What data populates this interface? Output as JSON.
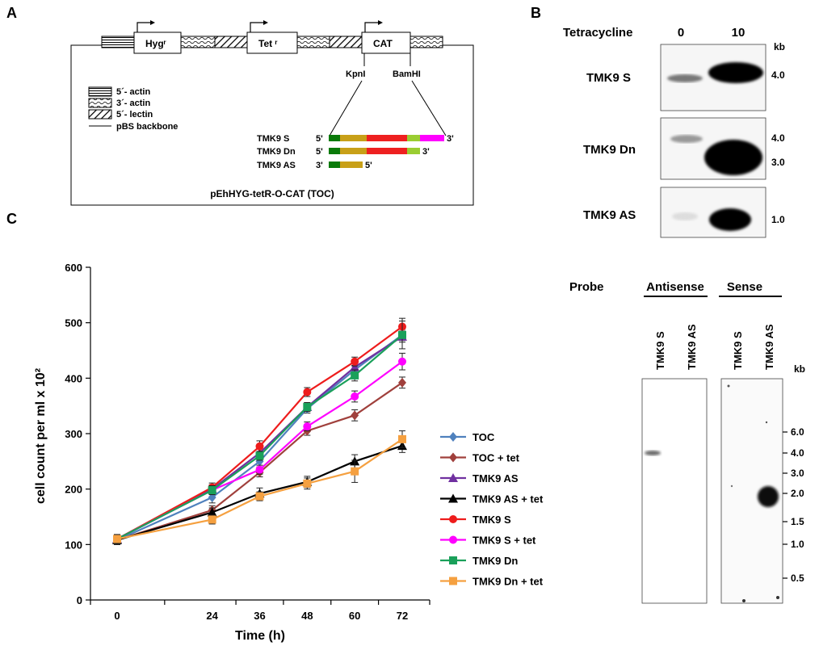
{
  "panel_labels": {
    "a": "A",
    "b": "B",
    "c": "C"
  },
  "panel_a": {
    "genes": [
      "Hygʳ",
      "Tet ʳ",
      "CAT"
    ],
    "sites": [
      "KpnI",
      "BamHI"
    ],
    "legend": [
      "5´- actin",
      "3´- actin",
      "5´- lectin",
      "pBS backbone"
    ],
    "constructs": [
      {
        "name": "TMK9 S",
        "left": "5'",
        "right": "3'"
      },
      {
        "name": "TMK9 Dn",
        "left": "5'",
        "right": "3'"
      },
      {
        "name": "TMK9 AS",
        "left": "3'",
        "right": "5'"
      }
    ],
    "plasmid_name": "pEhHYG-tetR-O-CAT (TOC)",
    "colors": {
      "dark_green": "#0a7a0a",
      "mustard": "#c8a018",
      "red": "#ee2020",
      "lime": "#9acd32",
      "magenta": "#ff00ff"
    }
  },
  "panel_b": {
    "treatment_label": "Tetracycline",
    "doses": [
      "0",
      "10"
    ],
    "unit": "kb",
    "blots": [
      {
        "name": "TMK9 S",
        "sizes": [
          "4.0"
        ]
      },
      {
        "name": "TMK9 Dn",
        "sizes": [
          "4.0",
          "3.0"
        ]
      },
      {
        "name": "TMK9 AS",
        "sizes": [
          "1.0"
        ]
      }
    ]
  },
  "panel_d": {
    "probe_label": "Probe",
    "groups": [
      "Antisense",
      "Sense"
    ],
    "lanes": [
      "TMK9 S",
      "TMK9 AS",
      "TMK9 S",
      "TMK9 AS"
    ],
    "unit": "kb",
    "markers": [
      "6.0",
      "4.0",
      "3.0",
      "2.0",
      "1.5",
      "1.0",
      "0.5"
    ]
  },
  "chart_data": {
    "type": "line",
    "xlabel": "Time (h)",
    "ylabel": "cell count per ml x 10²",
    "x": [
      0,
      24,
      36,
      48,
      60,
      72
    ],
    "xlim": [
      0,
      72
    ],
    "ylim": [
      0,
      600
    ],
    "yticks": [
      0,
      100,
      200,
      300,
      400,
      500,
      600
    ],
    "grid": false,
    "legend_position": "right",
    "series": [
      {
        "name": "TOC",
        "color": "#4f81bd",
        "marker": "diamond",
        "values": [
          108,
          185,
          250,
          345,
          415,
          478
        ],
        "err": [
          8,
          10,
          10,
          8,
          8,
          10
        ]
      },
      {
        "name": "TOC + tet",
        "color": "#a0403c",
        "marker": "diamond",
        "values": [
          108,
          162,
          230,
          305,
          333,
          392
        ],
        "err": [
          8,
          8,
          8,
          8,
          10,
          10
        ]
      },
      {
        "name": "TMK9 AS",
        "color": "#7030a0",
        "marker": "triangle",
        "values": [
          110,
          200,
          265,
          348,
          420,
          475
        ],
        "err": [
          8,
          8,
          8,
          8,
          10,
          10
        ]
      },
      {
        "name": "TMK9 AS + tet",
        "color": "#000000",
        "marker": "triangle",
        "values": [
          108,
          158,
          192,
          213,
          250,
          278
        ],
        "err": [
          8,
          8,
          10,
          10,
          12,
          12
        ]
      },
      {
        "name": "TMK9 S",
        "color": "#ee1c1c",
        "marker": "circle",
        "values": [
          110,
          203,
          277,
          375,
          430,
          493
        ],
        "err": [
          8,
          8,
          10,
          8,
          8,
          15
        ]
      },
      {
        "name": "TMK9 S + tet",
        "color": "#ff00ff",
        "marker": "circle",
        "values": [
          110,
          198,
          235,
          313,
          367,
          430
        ],
        "err": [
          8,
          8,
          8,
          8,
          10,
          15
        ]
      },
      {
        "name": "TMK9 Dn",
        "color": "#1aa05a",
        "marker": "square",
        "values": [
          110,
          198,
          260,
          348,
          405,
          478
        ],
        "err": [
          8,
          8,
          8,
          8,
          10,
          25
        ]
      },
      {
        "name": "TMK9 Dn + tet",
        "color": "#f5a040",
        "marker": "square",
        "values": [
          110,
          145,
          187,
          210,
          232,
          290
        ],
        "err": [
          8,
          8,
          8,
          10,
          20,
          15
        ]
      }
    ]
  }
}
